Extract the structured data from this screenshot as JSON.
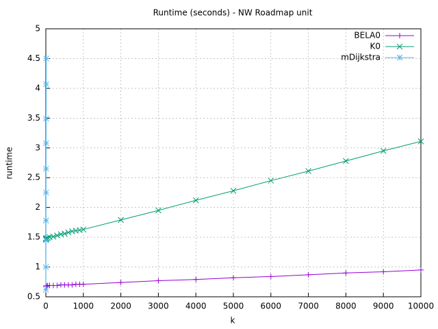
{
  "chart_data": {
    "type": "line",
    "title": "Runtime (seconds) - NW Roadmap unit",
    "x_label": "k",
    "y_label": "runtime",
    "series": [
      {
        "name": "BELA0",
        "color": "#9400d3",
        "marker": "plus",
        "x": [
          1,
          2,
          5,
          10,
          20,
          50,
          100,
          200,
          300,
          400,
          500,
          600,
          700,
          800,
          900,
          1000,
          2000,
          3000,
          4000,
          5000,
          6000,
          7000,
          8000,
          9000,
          10000
        ],
        "values": [
          0.68,
          0.68,
          0.68,
          0.68,
          0.68,
          0.69,
          0.69,
          0.69,
          0.69,
          0.7,
          0.7,
          0.7,
          0.7,
          0.71,
          0.71,
          0.71,
          0.74,
          0.77,
          0.79,
          0.82,
          0.84,
          0.87,
          0.9,
          0.92,
          0.95
        ]
      },
      {
        "name": "K0",
        "color": "#009e73",
        "marker": "cross",
        "x": [
          1,
          2,
          5,
          10,
          20,
          50,
          100,
          200,
          300,
          400,
          500,
          600,
          700,
          800,
          900,
          1000,
          2000,
          3000,
          4000,
          5000,
          6000,
          7000,
          8000,
          9000,
          10000
        ],
        "values": [
          1.47,
          1.47,
          1.48,
          1.48,
          1.48,
          1.49,
          1.5,
          1.51,
          1.53,
          1.55,
          1.56,
          1.58,
          1.6,
          1.61,
          1.62,
          1.63,
          1.79,
          1.95,
          2.12,
          2.28,
          2.45,
          2.61,
          2.78,
          2.95,
          3.11
        ]
      },
      {
        "name": "mDijkstra",
        "color": "#56b4e9",
        "marker": "star",
        "x": [
          1,
          2,
          3,
          4,
          5,
          6,
          7,
          8,
          9,
          10
        ],
        "values": [
          0.62,
          1.0,
          1.45,
          1.78,
          2.25,
          2.65,
          3.08,
          3.49,
          4.07,
          4.5
        ]
      }
    ],
    "xlim": [
      0,
      10000
    ],
    "xticks": [
      0,
      1000,
      2000,
      3000,
      4000,
      5000,
      6000,
      7000,
      8000,
      9000,
      10000
    ],
    "ylim": [
      0.5,
      5
    ],
    "yticks": [
      0.5,
      1,
      1.5,
      2,
      2.5,
      3,
      3.5,
      4,
      4.5,
      5
    ],
    "grid": true,
    "legend": "top-right"
  }
}
